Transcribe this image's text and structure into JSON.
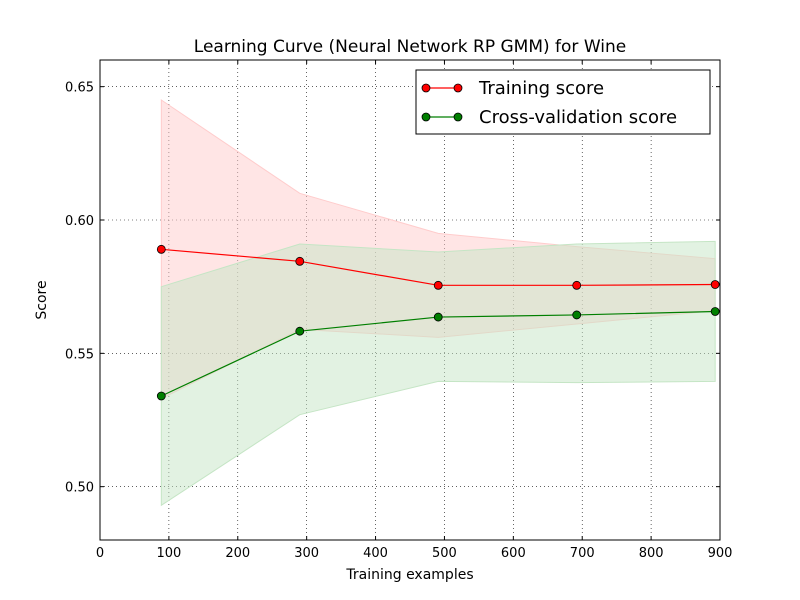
{
  "chart_data": {
    "type": "line",
    "title": "Learning Curve (Neural Network RP GMM) for Wine",
    "xlabel": "Training examples",
    "ylabel": "Score",
    "xlim": [
      0,
      900
    ],
    "ylim": [
      0.48,
      0.66
    ],
    "x_ticks": [
      0,
      100,
      200,
      300,
      400,
      500,
      600,
      700,
      800,
      900
    ],
    "x_tick_labels": [
      "0",
      "100",
      "200",
      "300",
      "400",
      "500",
      "600",
      "700",
      "800",
      "900"
    ],
    "y_ticks": [
      0.5,
      0.55,
      0.6,
      0.65
    ],
    "y_tick_labels": [
      "0.50",
      "0.55",
      "0.60",
      "0.65"
    ],
    "grid": true,
    "legend_position": "top-right",
    "x": [
      89,
      290,
      491,
      692,
      893
    ],
    "series": [
      {
        "name": "Training score",
        "color": "#ff0000",
        "band_color": "#ffcccc",
        "values": [
          0.589,
          0.5845,
          0.5755,
          0.5755,
          0.5758
        ],
        "upper": [
          0.645,
          0.61,
          0.595,
          0.59,
          0.5855
        ],
        "lower": [
          0.533,
          0.559,
          0.556,
          0.561,
          0.566
        ]
      },
      {
        "name": "Cross-validation score",
        "color": "#007f00",
        "band_color": "#c5e5c5",
        "values": [
          0.534,
          0.5583,
          0.5636,
          0.5644,
          0.5657
        ],
        "upper": [
          0.575,
          0.591,
          0.588,
          0.591,
          0.592
        ],
        "lower": [
          0.493,
          0.527,
          0.5395,
          0.539,
          0.5395
        ]
      }
    ]
  }
}
